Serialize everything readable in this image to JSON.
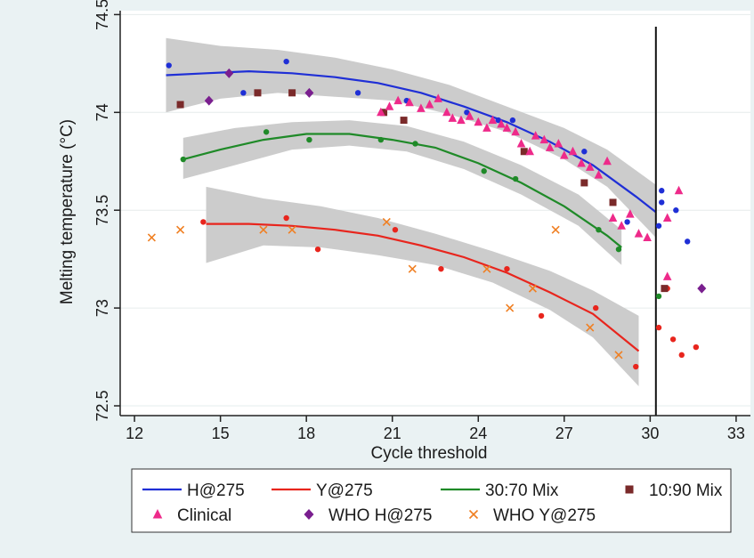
{
  "chart_data": {
    "type": "scatter",
    "title": "",
    "xlabel": "Cycle threshold",
    "ylabel": "Melting temperature (°C)",
    "xlim": [
      11.5,
      33.5
    ],
    "ylim": [
      72.45,
      74.52
    ],
    "x_ticks": [
      12,
      15,
      18,
      21,
      24,
      27,
      30,
      33
    ],
    "x_tick_labels": [
      "12",
      "15",
      "18",
      "21",
      "24",
      "27",
      "30",
      "33"
    ],
    "y_ticks": [
      72.5,
      73,
      73.5,
      74,
      74.5
    ],
    "y_tick_labels": [
      "72.5",
      "73",
      "73.5",
      "74",
      "74.5"
    ],
    "vertical_reference_line": 30.2,
    "grid": "horizontal",
    "legend_position": "bottom",
    "colors": {
      "H@275": "#1f2fd6",
      "Y@275": "#e8251d",
      "30:70 Mix": "#1f8a28",
      "10:90 Mix": "#7a2a2a",
      "Clinical": "#ee2a8a",
      "WHO H@275": "#7a1f8f",
      "WHO Y@275": "#f07f22",
      "band": "#c9c9c9"
    },
    "fits": [
      {
        "name": "H@275",
        "points": [
          [
            13.1,
            74.19
          ],
          [
            14.5,
            74.2
          ],
          [
            16,
            74.21
          ],
          [
            17.5,
            74.2
          ],
          [
            19,
            74.18
          ],
          [
            20.5,
            74.15
          ],
          [
            22,
            74.1
          ],
          [
            23.5,
            74.03
          ],
          [
            25,
            73.95
          ],
          [
            26.5,
            73.85
          ],
          [
            28,
            73.73
          ],
          [
            29.5,
            73.57
          ],
          [
            30.2,
            73.49
          ]
        ],
        "band_upper": [
          [
            13.1,
            74.38
          ],
          [
            15,
            74.34
          ],
          [
            17,
            74.32
          ],
          [
            19,
            74.28
          ],
          [
            21,
            74.22
          ],
          [
            23,
            74.14
          ],
          [
            25,
            74.03
          ],
          [
            27,
            73.92
          ],
          [
            28.5,
            73.81
          ],
          [
            30.2,
            73.63
          ]
        ],
        "band_lower": [
          [
            13.1,
            74.0
          ],
          [
            15,
            74.07
          ],
          [
            17,
            74.1
          ],
          [
            19,
            74.08
          ],
          [
            21,
            74.06
          ],
          [
            23,
            73.99
          ],
          [
            25,
            73.9
          ],
          [
            27,
            73.76
          ],
          [
            28.5,
            73.62
          ],
          [
            30.2,
            73.36
          ]
        ]
      },
      {
        "name": "30:70 Mix",
        "points": [
          [
            13.7,
            73.76
          ],
          [
            15,
            73.81
          ],
          [
            16.5,
            73.86
          ],
          [
            18,
            73.89
          ],
          [
            19.5,
            73.89
          ],
          [
            21,
            73.86
          ],
          [
            22.5,
            73.82
          ],
          [
            24,
            73.74
          ],
          [
            25.5,
            73.64
          ],
          [
            27,
            73.52
          ],
          [
            28.5,
            73.37
          ],
          [
            29,
            73.31
          ]
        ],
        "band_upper": [
          [
            13.7,
            73.87
          ],
          [
            15.5,
            73.92
          ],
          [
            17.5,
            73.95
          ],
          [
            19.5,
            73.96
          ],
          [
            21.5,
            73.93
          ],
          [
            23.5,
            73.85
          ],
          [
            25.5,
            73.73
          ],
          [
            27.5,
            73.58
          ],
          [
            29,
            73.4
          ]
        ],
        "band_lower": [
          [
            13.7,
            73.66
          ],
          [
            15.5,
            73.73
          ],
          [
            17.5,
            73.81
          ],
          [
            19.5,
            73.83
          ],
          [
            21.5,
            73.8
          ],
          [
            23.5,
            73.71
          ],
          [
            25.5,
            73.58
          ],
          [
            27.5,
            73.42
          ],
          [
            29,
            73.22
          ]
        ]
      },
      {
        "name": "Y@275",
        "points": [
          [
            14.5,
            73.43
          ],
          [
            16,
            73.43
          ],
          [
            17.5,
            73.42
          ],
          [
            19,
            73.4
          ],
          [
            20.5,
            73.37
          ],
          [
            22,
            73.32
          ],
          [
            23.5,
            73.26
          ],
          [
            25,
            73.18
          ],
          [
            26.5,
            73.08
          ],
          [
            28,
            72.97
          ],
          [
            29.6,
            72.78
          ]
        ],
        "band_upper": [
          [
            14.5,
            73.62
          ],
          [
            16.5,
            73.56
          ],
          [
            18.5,
            73.52
          ],
          [
            20.5,
            73.46
          ],
          [
            22.5,
            73.38
          ],
          [
            24.5,
            73.29
          ],
          [
            26.5,
            73.19
          ],
          [
            28,
            73.09
          ],
          [
            29.6,
            72.96
          ]
        ],
        "band_lower": [
          [
            14.5,
            73.23
          ],
          [
            16.5,
            73.32
          ],
          [
            18.5,
            73.31
          ],
          [
            20.5,
            73.27
          ],
          [
            22.5,
            73.22
          ],
          [
            24.5,
            73.13
          ],
          [
            26.5,
            72.99
          ],
          [
            28,
            72.85
          ],
          [
            29.6,
            72.6
          ]
        ]
      }
    ],
    "series": [
      {
        "name": "H@275",
        "marker": "circle",
        "points": [
          [
            13.2,
            74.24
          ],
          [
            15.8,
            74.1
          ],
          [
            17.3,
            74.26
          ],
          [
            19.8,
            74.1
          ],
          [
            21.5,
            74.06
          ],
          [
            23.6,
            74.0
          ],
          [
            24.7,
            73.96
          ],
          [
            25.2,
            73.96
          ],
          [
            27.7,
            73.8
          ],
          [
            29.2,
            73.44
          ],
          [
            30.4,
            73.6
          ],
          [
            30.4,
            73.54
          ],
          [
            30.9,
            73.5
          ],
          [
            31.3,
            73.34
          ],
          [
            30.3,
            73.42
          ]
        ]
      },
      {
        "name": "Y@275",
        "marker": "circle",
        "points": [
          [
            14.4,
            73.44
          ],
          [
            17.3,
            73.46
          ],
          [
            18.4,
            73.3
          ],
          [
            21.1,
            73.4
          ],
          [
            22.7,
            73.2
          ],
          [
            25.0,
            73.2
          ],
          [
            26.2,
            72.96
          ],
          [
            28.1,
            73.0
          ],
          [
            29.5,
            72.7
          ],
          [
            30.3,
            72.9
          ],
          [
            30.8,
            72.84
          ],
          [
            31.1,
            72.76
          ],
          [
            31.6,
            72.8
          ],
          [
            30.6,
            73.1
          ]
        ]
      },
      {
        "name": "30:70 Mix",
        "marker": "circle",
        "points": [
          [
            13.7,
            73.76
          ],
          [
            16.6,
            73.9
          ],
          [
            18.1,
            73.86
          ],
          [
            20.6,
            73.86
          ],
          [
            21.8,
            73.84
          ],
          [
            24.2,
            73.7
          ],
          [
            25.3,
            73.66
          ],
          [
            28.2,
            73.4
          ],
          [
            28.9,
            73.3
          ],
          [
            30.3,
            73.06
          ]
        ]
      },
      {
        "name": "10:90 Mix",
        "marker": "square",
        "points": [
          [
            13.6,
            74.04
          ],
          [
            16.3,
            74.1
          ],
          [
            17.5,
            74.1
          ],
          [
            20.7,
            74.0
          ],
          [
            21.4,
            73.96
          ],
          [
            25.6,
            73.8
          ],
          [
            27.7,
            73.64
          ],
          [
            28.7,
            73.54
          ],
          [
            30.5,
            73.1
          ]
        ]
      },
      {
        "name": "Clinical",
        "marker": "triangle",
        "points": [
          [
            20.6,
            74.0
          ],
          [
            20.9,
            74.03
          ],
          [
            21.2,
            74.06
          ],
          [
            21.6,
            74.05
          ],
          [
            22.0,
            74.02
          ],
          [
            22.3,
            74.04
          ],
          [
            22.6,
            74.07
          ],
          [
            22.9,
            74.0
          ],
          [
            23.1,
            73.97
          ],
          [
            23.4,
            73.96
          ],
          [
            23.7,
            73.98
          ],
          [
            24.0,
            73.95
          ],
          [
            24.3,
            73.92
          ],
          [
            24.5,
            73.96
          ],
          [
            24.8,
            73.94
          ],
          [
            25.0,
            73.92
          ],
          [
            25.3,
            73.9
          ],
          [
            25.5,
            73.84
          ],
          [
            25.8,
            73.8
          ],
          [
            26.0,
            73.88
          ],
          [
            26.3,
            73.86
          ],
          [
            26.5,
            73.82
          ],
          [
            26.8,
            73.84
          ],
          [
            27.0,
            73.78
          ],
          [
            27.3,
            73.8
          ],
          [
            27.6,
            73.74
          ],
          [
            27.9,
            73.72
          ],
          [
            28.2,
            73.68
          ],
          [
            28.5,
            73.75
          ],
          [
            28.7,
            73.46
          ],
          [
            29.0,
            73.42
          ],
          [
            29.3,
            73.48
          ],
          [
            29.6,
            73.38
          ],
          [
            29.9,
            73.36
          ],
          [
            30.6,
            73.46
          ],
          [
            31.0,
            73.6
          ],
          [
            30.6,
            73.16
          ]
        ]
      },
      {
        "name": "WHO H@275",
        "marker": "diamond",
        "points": [
          [
            14.6,
            74.06
          ],
          [
            15.3,
            74.2
          ],
          [
            18.1,
            74.1
          ],
          [
            31.8,
            73.1
          ]
        ]
      },
      {
        "name": "WHO Y@275",
        "marker": "x",
        "points": [
          [
            12.6,
            73.36
          ],
          [
            13.6,
            73.4
          ],
          [
            16.5,
            73.4
          ],
          [
            17.5,
            73.4
          ],
          [
            20.8,
            73.44
          ],
          [
            21.7,
            73.2
          ],
          [
            24.3,
            73.2
          ],
          [
            25.1,
            73.0
          ],
          [
            25.9,
            73.1
          ],
          [
            26.7,
            73.4
          ],
          [
            27.9,
            72.9
          ],
          [
            28.9,
            72.76
          ]
        ]
      }
    ],
    "legend": {
      "entries": [
        {
          "label": "H@275",
          "symbol": "line",
          "color": "#1f2fd6"
        },
        {
          "label": "Y@275",
          "symbol": "line",
          "color": "#e8251d"
        },
        {
          "label": "30:70 Mix",
          "symbol": "line",
          "color": "#1f8a28"
        },
        {
          "label": "10:90 Mix",
          "symbol": "square",
          "color": "#7a2a2a"
        },
        {
          "label": "Clinical",
          "symbol": "triangle",
          "color": "#ee2a8a"
        },
        {
          "label": "WHO H@275",
          "symbol": "diamond",
          "color": "#7a1f8f"
        },
        {
          "label": "WHO Y@275",
          "symbol": "x",
          "color": "#f07f22"
        }
      ]
    }
  }
}
